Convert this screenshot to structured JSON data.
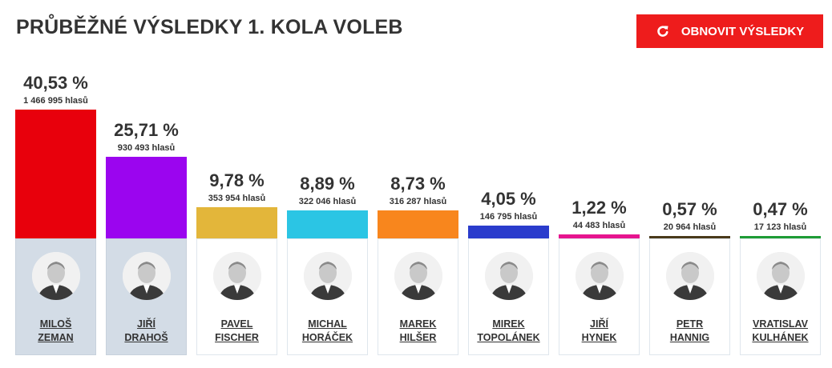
{
  "header": {
    "title": "PRŮBĚŽNÉ VÝSLEDKY 1. KOLA VOLEB",
    "refresh_label": "OBNOVIT VÝSLEDKY"
  },
  "colors": {
    "accent": "#ee1c1c",
    "highlight_card": "#d3dce6"
  },
  "chart_data": {
    "type": "bar",
    "categories": [
      "MILOŠ ZEMAN",
      "JIŘÍ DRAHOŠ",
      "PAVEL FISCHER",
      "MICHAL HORÁČEK",
      "MAREK HILŠER",
      "MIREK TOPOLÁNEK",
      "JIŘÍ HYNEK",
      "PETR HANNIG",
      "VRATISLAV KULHÁNEK"
    ],
    "values": [
      40.53,
      25.71,
      9.78,
      8.89,
      8.73,
      4.05,
      1.22,
      0.57,
      0.47
    ],
    "ylim": [
      0,
      100
    ],
    "title": "PRŮBĚŽNÉ VÝSLEDKY 1. KOLA VOLEB"
  },
  "candidates": [
    {
      "first": "MILOŠ",
      "last": "ZEMAN",
      "pct_label": "40,53 %",
      "votes_label": "1 466 995 hlasů",
      "pct": 40.53,
      "color": "#e8000c",
      "highlight": true
    },
    {
      "first": "JIŘÍ",
      "last": "DRAHOŠ",
      "pct_label": "25,71 %",
      "votes_label": "930 493 hlasů",
      "pct": 25.71,
      "color": "#9b05ef",
      "highlight": true
    },
    {
      "first": "PAVEL",
      "last": "FISCHER",
      "pct_label": "9,78 %",
      "votes_label": "353 954 hlasů",
      "pct": 9.78,
      "color": "#e3b63a",
      "highlight": false
    },
    {
      "first": "MICHAL",
      "last": "HORÁČEK",
      "pct_label": "8,89 %",
      "votes_label": "322 046 hlasů",
      "pct": 8.89,
      "color": "#2bc5e4",
      "highlight": false
    },
    {
      "first": "MAREK",
      "last": "HILŠER",
      "pct_label": "8,73 %",
      "votes_label": "316 287 hlasů",
      "pct": 8.73,
      "color": "#f8861d",
      "highlight": false
    },
    {
      "first": "MIREK",
      "last": "TOPOLÁNEK",
      "pct_label": "4,05 %",
      "votes_label": "146 795 hlasů",
      "pct": 4.05,
      "color": "#2a3ccc",
      "highlight": false
    },
    {
      "first": "JIŘÍ",
      "last": "HYNEK",
      "pct_label": "1,22 %",
      "votes_label": "44 483 hlasů",
      "pct": 1.22,
      "color": "#e6148f",
      "highlight": false
    },
    {
      "first": "PETR",
      "last": "HANNIG",
      "pct_label": "0,57 %",
      "votes_label": "20 964 hlasů",
      "pct": 0.57,
      "color": "#4a3a1a",
      "highlight": false
    },
    {
      "first": "VRATISLAV",
      "last": "KULHÁNEK",
      "pct_label": "0,47 %",
      "votes_label": "17 123 hlasů",
      "pct": 0.47,
      "color": "#1e9c35",
      "highlight": false
    }
  ]
}
